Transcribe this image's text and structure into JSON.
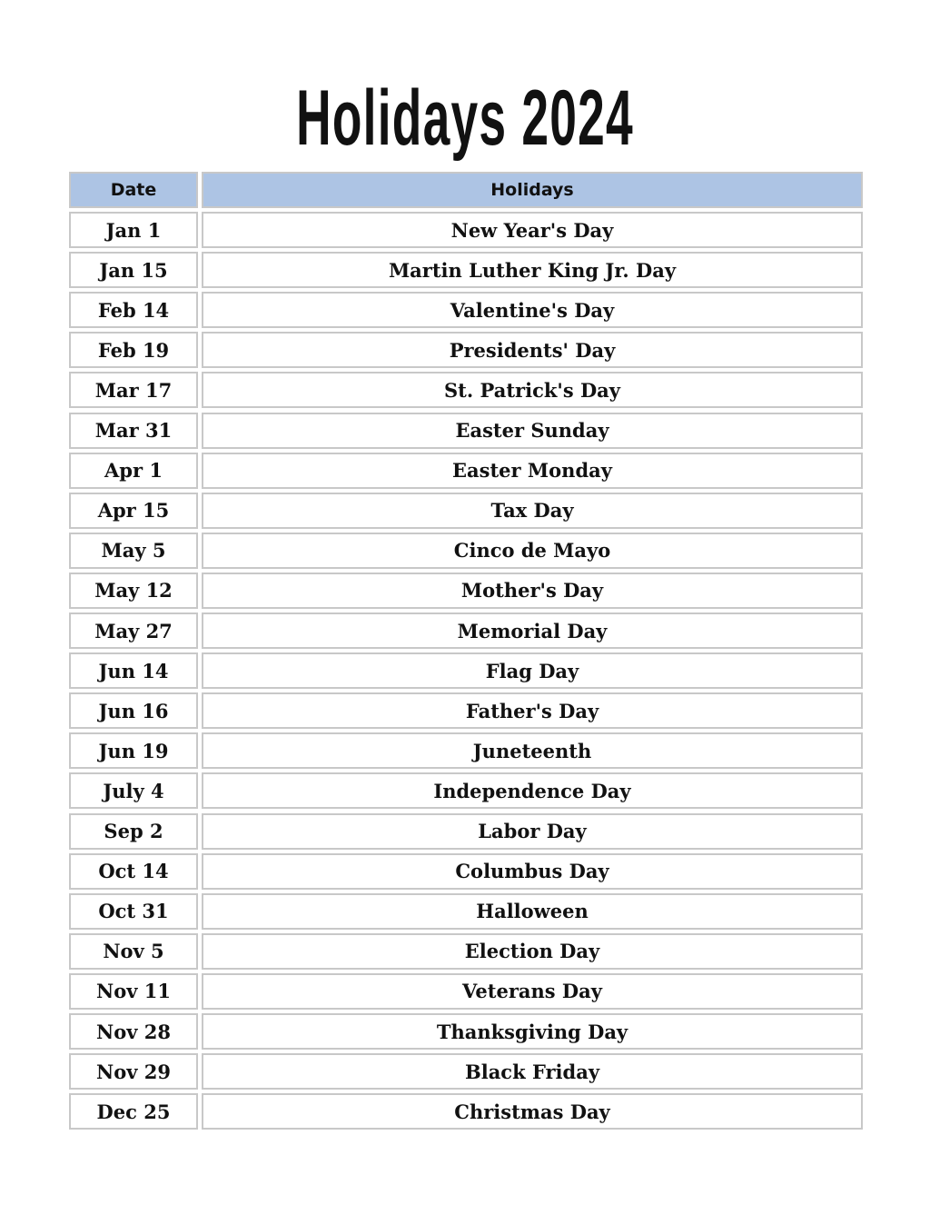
{
  "title": "Holidays 2024",
  "columns": {
    "date": "Date",
    "holiday": "Holidays"
  },
  "header_color": "#adc4e4",
  "rows": [
    {
      "date": "Jan 1",
      "holiday": "New Year's Day"
    },
    {
      "date": "Jan 15",
      "holiday": "Martin Luther King Jr. Day"
    },
    {
      "date": "Feb 14",
      "holiday": "Valentine's Day"
    },
    {
      "date": "Feb 19",
      "holiday": "Presidents' Day"
    },
    {
      "date": "Mar 17",
      "holiday": "St. Patrick's Day"
    },
    {
      "date": "Mar 31",
      "holiday": "Easter Sunday"
    },
    {
      "date": "Apr 1",
      "holiday": "Easter Monday"
    },
    {
      "date": "Apr 15",
      "holiday": "Tax Day"
    },
    {
      "date": "May 5",
      "holiday": "Cinco de Mayo"
    },
    {
      "date": "May 12",
      "holiday": "Mother's Day"
    },
    {
      "date": "May 27",
      "holiday": "Memorial Day"
    },
    {
      "date": "Jun 14",
      "holiday": "Flag Day"
    },
    {
      "date": "Jun 16",
      "holiday": "Father's Day"
    },
    {
      "date": "Jun 19",
      "holiday": "Juneteenth"
    },
    {
      "date": "July 4",
      "holiday": "Independence Day"
    },
    {
      "date": "Sep 2",
      "holiday": "Labor Day"
    },
    {
      "date": "Oct 14",
      "holiday": "Columbus Day"
    },
    {
      "date": "Oct 31",
      "holiday": "Halloween"
    },
    {
      "date": "Nov 5",
      "holiday": "Election Day"
    },
    {
      "date": "Nov 11",
      "holiday": "Veterans Day"
    },
    {
      "date": "Nov 28",
      "holiday": "Thanksgiving Day"
    },
    {
      "date": "Nov 29",
      "holiday": "Black Friday"
    },
    {
      "date": "Dec 25",
      "holiday": "Christmas Day"
    }
  ]
}
